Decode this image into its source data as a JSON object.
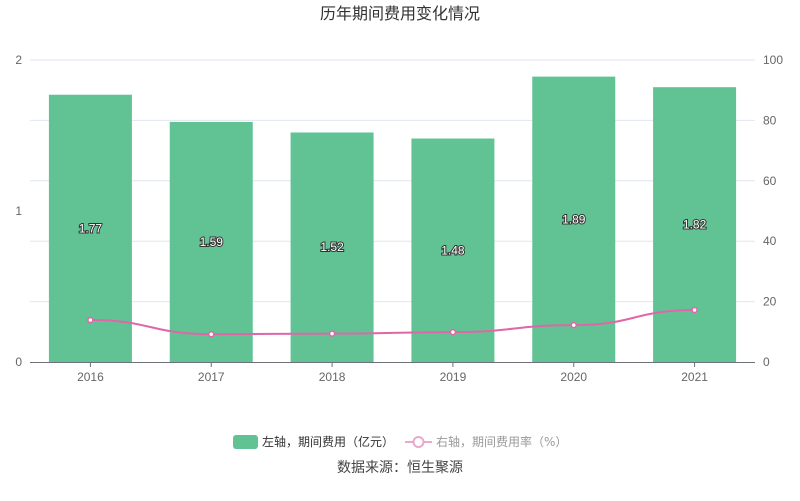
{
  "chart_data": {
    "type": "bar+line",
    "title": "历年期间费用变化情况",
    "categories": [
      "2016",
      "2017",
      "2018",
      "2019",
      "2020",
      "2021"
    ],
    "series": [
      {
        "name": "左轴，期间费用（亿元）",
        "type": "bar",
        "axis": "left",
        "values": [
          1.77,
          1.59,
          1.52,
          1.48,
          1.89,
          1.82
        ],
        "color": "#61c394",
        "data_labels": [
          "1.77",
          "1.59",
          "1.52",
          "1.48",
          "1.89",
          "1.82"
        ]
      },
      {
        "name": "右轴，期间费用率（%）",
        "type": "line",
        "axis": "right",
        "values": [
          13.9,
          9.2,
          9.4,
          9.9,
          12.2,
          17.2
        ],
        "color": "#e066a8"
      }
    ],
    "left_axis": {
      "range": [
        0,
        2
      ],
      "ticks": [
        "0",
        "1",
        "2"
      ]
    },
    "right_axis": {
      "range": [
        0,
        100
      ],
      "ticks": [
        "0",
        "20",
        "40",
        "60",
        "80",
        "100"
      ]
    },
    "grid": true,
    "legend_position": "bottom",
    "source": "数据来源：恒生聚源"
  }
}
